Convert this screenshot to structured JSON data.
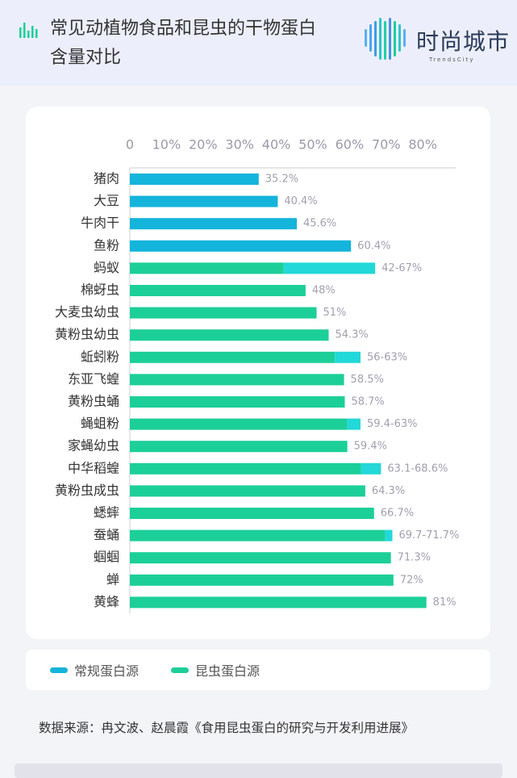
{
  "chart_data": {
    "type": "bar",
    "orientation": "horizontal",
    "title": "常见动植物食品和昆虫的干物蛋白含量对比",
    "categories": [
      "猪肉",
      "大豆",
      "牛肉干",
      "鱼粉",
      "蚂蚁",
      "棉蚜虫",
      "大麦虫幼虫",
      "黄粉虫幼虫",
      "蚯蚓粉",
      "东亚飞蝗",
      "黄粉虫蛹",
      "蝇蛆粉",
      "家蝇幼虫",
      "中华稻蝗",
      "黄粉虫成虫",
      "蟋蟀",
      "蚕蛹",
      "蝈蝈",
      "蝉",
      "黄蜂"
    ],
    "series": [
      {
        "name": "常规蛋白源",
        "color": "#14b4db",
        "values": [
          35.2,
          40.4,
          45.6,
          60.4,
          null,
          null,
          null,
          null,
          null,
          null,
          null,
          null,
          null,
          null,
          null,
          null,
          null,
          null,
          null,
          null
        ],
        "value_labels": [
          "35.2%",
          "40.4%",
          "45.6%",
          "60.4%",
          null,
          null,
          null,
          null,
          null,
          null,
          null,
          null,
          null,
          null,
          null,
          null,
          null,
          null,
          null,
          null
        ]
      },
      {
        "name": "昆虫蛋白源",
        "color": "#1ccf98",
        "values": [
          null,
          null,
          null,
          null,
          42,
          48,
          51,
          54.3,
          56,
          58.5,
          58.7,
          59.4,
          59.4,
          63.1,
          64.3,
          66.7,
          69.7,
          71.3,
          72,
          81
        ],
        "value_labels": [
          null,
          null,
          null,
          null,
          "42-67%",
          "48%",
          "51%",
          "54.3%",
          "56-63%",
          "58.5%",
          "58.7%",
          "59.4-63%",
          "59.4%",
          "63.1-68.6%",
          "64.3%",
          "66.7%",
          "69.7-71.7%",
          "71.3%",
          "72%",
          "81%"
        ]
      }
    ],
    "range_max": [
      null,
      null,
      null,
      null,
      67,
      null,
      null,
      null,
      63,
      null,
      null,
      63,
      null,
      68.6,
      null,
      null,
      71.7,
      null,
      null,
      null
    ],
    "range_color": "#22d8d8",
    "xlim": [
      0,
      89
    ],
    "xticks": [
      0,
      {
        "value": 10,
        "label": "10%"
      },
      {
        "value": 20,
        "label": "20%"
      },
      {
        "value": 30,
        "label": "30%"
      },
      {
        "value": 40,
        "label": "40%"
      },
      {
        "value": 50,
        "label": "50%"
      },
      {
        "value": 60,
        "label": "60%"
      },
      {
        "value": 70,
        "label": "70%"
      },
      {
        "value": 80,
        "label": "80%"
      }
    ],
    "legend": "bottom-left"
  },
  "header": {
    "logo_text": "时尚城市",
    "logo_subtext": "TrendsCity"
  },
  "source": "数据来源：冉文波、赵晨霞《食用昆虫蛋白的研究与开发利用进展》"
}
